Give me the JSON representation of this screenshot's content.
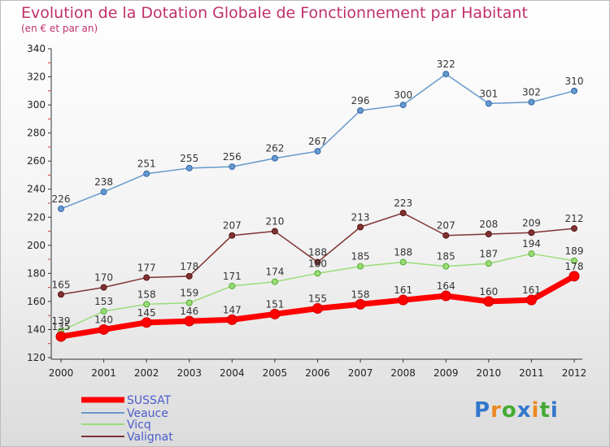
{
  "title": "Evolution de la Dotation Globale de Fonctionnement par Habitant",
  "subtitle": "(en € et par an)",
  "logo": "Proxiti",
  "chart_data": {
    "type": "line",
    "title": "Evolution de la Dotation Globale de Fonctionnement par Habitant",
    "subtitle": "(en € et par an)",
    "xlabel": "",
    "ylabel": "",
    "x": [
      2000,
      2001,
      2002,
      2003,
      2004,
      2005,
      2006,
      2007,
      2008,
      2009,
      2010,
      2011,
      2012
    ],
    "ylim": [
      120,
      340
    ],
    "yticks": [
      120,
      140,
      160,
      180,
      200,
      220,
      240,
      260,
      280,
      300,
      320,
      340
    ],
    "grid": false,
    "legend_position": "bottom-left",
    "series": [
      {
        "name": "SUSSAT",
        "color": "#ff0000",
        "values": [
          135,
          140,
          145,
          146,
          147,
          151,
          155,
          158,
          161,
          164,
          160,
          161,
          178
        ]
      },
      {
        "name": "Veauce",
        "color": "#6699cc",
        "values": [
          226,
          238,
          251,
          255,
          256,
          262,
          267,
          296,
          300,
          322,
          301,
          302,
          310
        ]
      },
      {
        "name": "Vicq",
        "color": "#99dd77",
        "values": [
          139,
          153,
          158,
          159,
          171,
          174,
          180,
          185,
          188,
          185,
          187,
          194,
          189
        ]
      },
      {
        "name": "Valignat",
        "color": "#803333",
        "values": [
          165,
          170,
          177,
          178,
          207,
          210,
          188,
          213,
          223,
          207,
          208,
          209,
          212
        ]
      }
    ]
  }
}
